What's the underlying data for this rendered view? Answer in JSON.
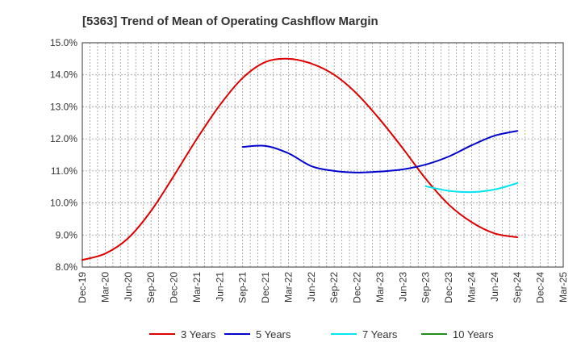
{
  "chart_data": {
    "type": "line",
    "title": "[5363]  Trend of Mean of Operating Cashflow Margin",
    "xlabel": "",
    "ylabel": "",
    "ylim": [
      8.0,
      15.0
    ],
    "y_ticks": [
      "8.0%",
      "9.0%",
      "10.0%",
      "11.0%",
      "12.0%",
      "13.0%",
      "14.0%",
      "15.0%"
    ],
    "x_tick_labels": [
      "Dec-19",
      "Mar-20",
      "Jun-20",
      "Sep-20",
      "Dec-20",
      "Mar-21",
      "Jun-21",
      "Sep-21",
      "Dec-21",
      "Mar-22",
      "Jun-22",
      "Sep-22",
      "Dec-22",
      "Mar-23",
      "Jun-23",
      "Sep-23",
      "Dec-23",
      "Mar-24",
      "Jun-24",
      "Sep-24",
      "Dec-24",
      "Mar-25"
    ],
    "grid": true,
    "legend_position": "bottom",
    "series": [
      {
        "name": "3 Years",
        "color": "#dd0000",
        "values": [
          8.22,
          8.42,
          8.9,
          9.75,
          10.85,
          12.0,
          13.05,
          13.9,
          14.4,
          14.5,
          14.35,
          14.0,
          13.4,
          12.6,
          11.7,
          10.75,
          9.95,
          9.4,
          9.05,
          8.93,
          null,
          null
        ]
      },
      {
        "name": "5 Years",
        "color": "#0000cc",
        "values": [
          null,
          null,
          null,
          null,
          null,
          null,
          null,
          11.75,
          11.78,
          11.55,
          11.15,
          11.0,
          10.95,
          10.98,
          11.05,
          11.2,
          11.45,
          11.8,
          12.1,
          12.25,
          null,
          null
        ]
      },
      {
        "name": "7 Years",
        "color": "#00e5ee",
        "values": [
          null,
          null,
          null,
          null,
          null,
          null,
          null,
          null,
          null,
          null,
          null,
          null,
          null,
          null,
          null,
          10.52,
          10.38,
          10.34,
          10.42,
          10.62,
          null,
          null
        ]
      },
      {
        "name": "10 Years",
        "color": "#228b22",
        "values": [
          null,
          null,
          null,
          null,
          null,
          null,
          null,
          null,
          null,
          null,
          null,
          null,
          null,
          null,
          null,
          null,
          null,
          null,
          null,
          null,
          null,
          null
        ]
      }
    ]
  }
}
